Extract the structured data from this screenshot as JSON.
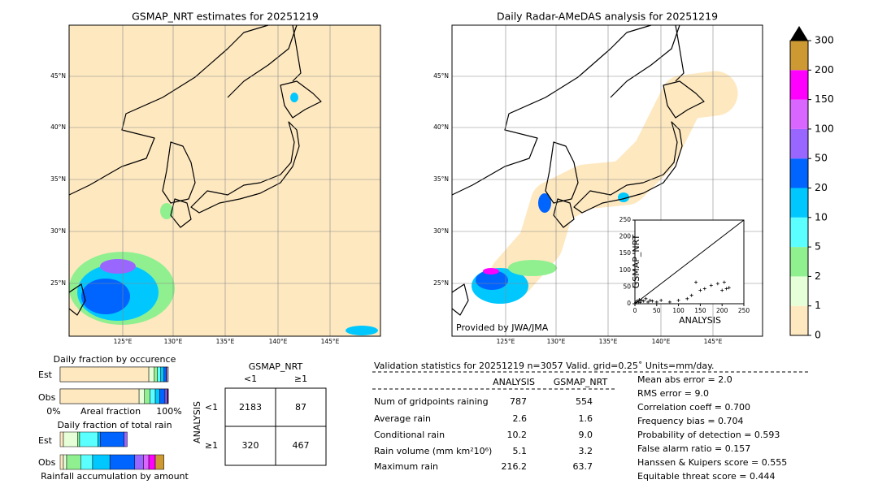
{
  "left_map": {
    "title": "GSMAP_NRT estimates for 20251219",
    "lat_labels": [
      "45°N",
      "40°N",
      "35°N",
      "30°N",
      "25°N"
    ],
    "lon_labels": [
      "125°E",
      "130°E",
      "135°E",
      "140°E",
      "145°E"
    ]
  },
  "right_map": {
    "title": "Daily Radar-AMeDAS analysis for 20251219",
    "lat_labels": [
      "45°N",
      "40°N",
      "35°N",
      "30°N",
      "25°N"
    ],
    "lon_labels": [
      "125°E",
      "130°E",
      "135°E",
      "140°E",
      "145°E"
    ],
    "credit": "Provided by JWA/JMA"
  },
  "colorbar": {
    "ticks": [
      0,
      1,
      2,
      5,
      10,
      20,
      50,
      100,
      150,
      200,
      300
    ],
    "colors": [
      "#fee8c0",
      "#e6ffd9",
      "#90f090",
      "#5cffff",
      "#00c8ff",
      "#0064ff",
      "#9966ff",
      "#d966ff",
      "#ff00ff",
      "#cc9933"
    ],
    "over_color": "#000000"
  },
  "scatter": {
    "type": "scatter",
    "xlabel": "ANALYSIS",
    "ylabel": "GSMAP_NRT",
    "xlim": [
      0,
      250
    ],
    "ylim": [
      0,
      250
    ],
    "xticks": [
      0,
      50,
      100,
      150,
      200,
      250
    ],
    "yticks": [
      0,
      50,
      100,
      150,
      200,
      250
    ],
    "x": [
      2,
      5,
      8,
      10,
      12,
      15,
      20,
      25,
      30,
      35,
      40,
      50,
      60,
      80,
      100,
      120,
      130,
      140,
      150,
      160,
      175,
      190,
      200,
      205,
      210,
      216
    ],
    "y": [
      3,
      8,
      5,
      12,
      4,
      10,
      8,
      15,
      5,
      10,
      8,
      5,
      10,
      5,
      10,
      15,
      25,
      64,
      40,
      45,
      55,
      60,
      40,
      64,
      45,
      48
    ]
  },
  "occurrence": {
    "title": "Daily fraction by occurence",
    "rows": [
      "Est",
      "Obs"
    ],
    "axis_labels": [
      "0%",
      "Areal fraction",
      "100%"
    ],
    "fractions": [
      [
        0.82,
        0.05,
        0.03,
        0.03,
        0.03,
        0.02,
        0.01,
        0,
        0,
        0
      ],
      [
        0.73,
        0.05,
        0.05,
        0.05,
        0.04,
        0.05,
        0.02,
        0.005,
        0.005,
        0
      ]
    ]
  },
  "total_rain": {
    "title": "Daily fraction of total rain",
    "rows": [
      "Est",
      "Obs"
    ],
    "footer": "Rainfall accumulation by amount",
    "fractions": [
      [
        0.03,
        0.13,
        0.02,
        0.17,
        0.02,
        0.22,
        0.03,
        0,
        0,
        0
      ],
      [
        0.03,
        0.03,
        0.13,
        0.11,
        0.16,
        0.23,
        0.08,
        0.05,
        0.06,
        0.08
      ]
    ]
  },
  "contingency": {
    "title": "GSMAP_NRT",
    "col_labels": [
      "<1",
      "≥1"
    ],
    "row_title": "ANALYSIS",
    "row_labels": [
      "<1",
      "≥1"
    ],
    "cells": [
      [
        2183,
        87
      ],
      [
        320,
        467
      ]
    ]
  },
  "stats": {
    "header": "Validation statistics for 20251219  n=3057 Valid. grid=0.25˚ Units=mm/day.",
    "col_heads": [
      "ANALYSIS",
      "GSMAP_NRT"
    ],
    "rows": [
      {
        "label": "Num of gridpoints raining",
        "values": [
          "787",
          "554"
        ]
      },
      {
        "label": "Average rain",
        "values": [
          "2.6",
          "1.6"
        ]
      },
      {
        "label": "Conditional rain",
        "values": [
          "10.2",
          "9.0"
        ]
      },
      {
        "label": "Rain volume (mm km²10⁶)",
        "values": [
          "5.1",
          "3.2"
        ]
      },
      {
        "label": "Maximum rain",
        "values": [
          "216.2",
          "63.7"
        ]
      }
    ],
    "scores": [
      "Mean abs error =    2.0",
      "RMS error =    9.0",
      "Correlation coeff =  0.700",
      "Frequency bias =  0.704",
      "Probability of detection =  0.593",
      "False alarm ratio =  0.157",
      "Hanssen & Kuipers score =  0.555",
      "Equitable threat score =  0.444"
    ]
  }
}
